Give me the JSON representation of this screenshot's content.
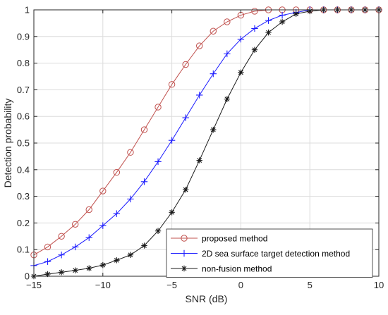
{
  "chart_data": {
    "type": "line",
    "title": "",
    "xlabel": "SNR (dB)",
    "ylabel": "Detection probability",
    "xlim": [
      -15,
      10
    ],
    "ylim": [
      0,
      1
    ],
    "xticks": [
      -15,
      -10,
      -5,
      0,
      5,
      10
    ],
    "yticks": [
      0,
      0.1,
      0.2,
      0.3,
      0.4,
      0.5,
      0.6,
      0.7,
      0.8,
      0.9,
      1
    ],
    "grid": true,
    "legend_position": "bottom-right",
    "x": [
      -15,
      -14,
      -13,
      -12,
      -11,
      -10,
      -9,
      -8,
      -7,
      -6,
      -5,
      -4,
      -3,
      -2,
      -1,
      0,
      1,
      2,
      3,
      4,
      5,
      6,
      7,
      8,
      9,
      10
    ],
    "series": [
      {
        "name": "proposed method",
        "color": "#c0504d",
        "marker": "circle",
        "values": [
          0.08,
          0.11,
          0.15,
          0.195,
          0.25,
          0.32,
          0.39,
          0.465,
          0.55,
          0.635,
          0.72,
          0.795,
          0.865,
          0.92,
          0.955,
          0.98,
          0.995,
          1,
          1,
          1,
          1,
          1,
          1,
          1,
          1,
          1
        ]
      },
      {
        "name": "2D sea surface target detection method",
        "color": "#1a1aff",
        "marker": "plus",
        "values": [
          0.04,
          0.055,
          0.08,
          0.11,
          0.145,
          0.19,
          0.235,
          0.29,
          0.355,
          0.43,
          0.51,
          0.595,
          0.68,
          0.76,
          0.835,
          0.89,
          0.93,
          0.96,
          0.98,
          0.99,
          1,
          1,
          1,
          1,
          1,
          1
        ]
      },
      {
        "name": "non-fusion method",
        "color": "#1a1a1a",
        "marker": "asterisk",
        "values": [
          0.0,
          0.008,
          0.015,
          0.022,
          0.03,
          0.042,
          0.06,
          0.08,
          0.115,
          0.17,
          0.24,
          0.325,
          0.435,
          0.55,
          0.665,
          0.765,
          0.85,
          0.915,
          0.955,
          0.985,
          0.995,
          1,
          1,
          1,
          1,
          1
        ]
      }
    ]
  }
}
